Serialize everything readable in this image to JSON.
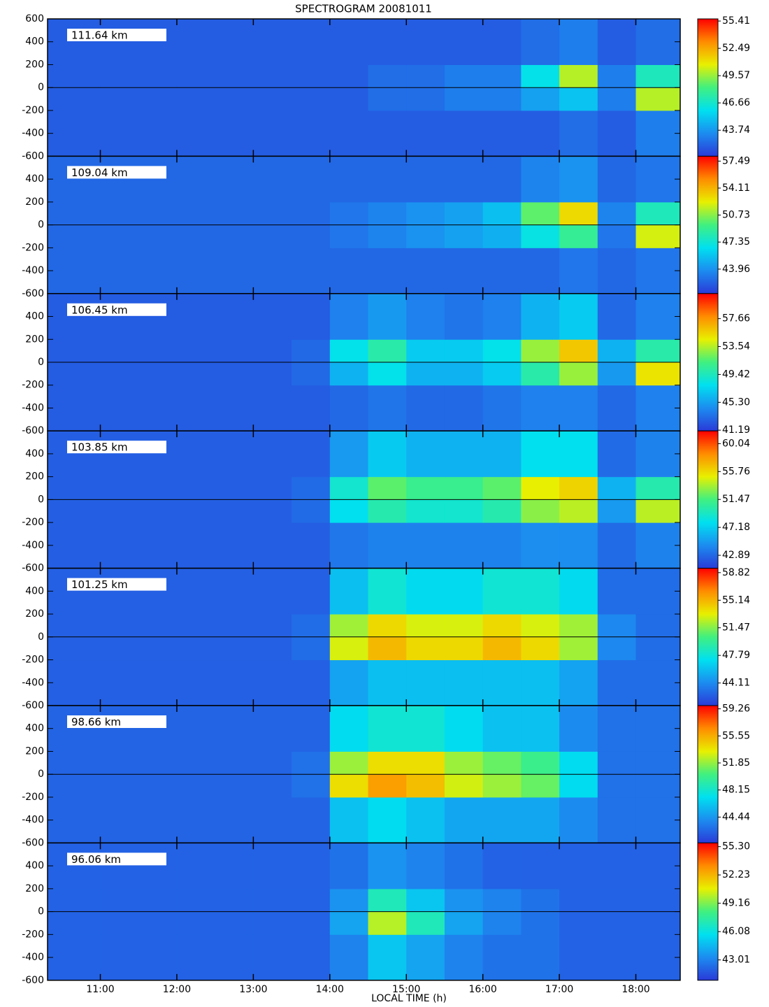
{
  "figure": {
    "title": "SPECTROGRAM 20081011",
    "x_label": "LOCAL TIME (h)",
    "xlim": [
      10.31,
      18.58
    ],
    "xticks": [
      {
        "value": 11,
        "label": "11:00"
      },
      {
        "value": 12,
        "label": "12:00"
      },
      {
        "value": 13,
        "label": "13:00"
      },
      {
        "value": 14,
        "label": "14:00"
      },
      {
        "value": 15,
        "label": "15:00"
      },
      {
        "value": 16,
        "label": "16:00"
      },
      {
        "value": 17,
        "label": "17:00"
      },
      {
        "value": 18,
        "label": "18:00"
      }
    ],
    "xbins": [
      10.31,
      11,
      12,
      13,
      13.5,
      14,
      14.5,
      15,
      15.5,
      16,
      16.5,
      17,
      17.5,
      18,
      18.58
    ],
    "ybins": [
      -600,
      -200,
      0,
      200,
      600
    ],
    "colormap": [
      "#2a3ad8",
      "#1c8cf0",
      "#00e0f0",
      "#40f080",
      "#e8f000",
      "#ff8c00",
      "#ff0000"
    ]
  },
  "chart_data": [
    {
      "type": "heatmap",
      "label": "111.64 km",
      "ylim": [
        -600,
        600
      ],
      "yticks": [
        -600,
        -400,
        -200,
        0,
        200,
        400,
        600
      ],
      "clim": [
        40.96,
        55.64
      ],
      "cticks": [
        43.74,
        46.66,
        49.57,
        52.49,
        55.41
      ],
      "z": [
        [
          42,
          42,
          42,
          42,
          42,
          42,
          42,
          42,
          42,
          42,
          42,
          42.5,
          42,
          43
        ],
        [
          42,
          42,
          42,
          42,
          42,
          42,
          42.5,
          42.5,
          43,
          43,
          44,
          45,
          43,
          50
        ],
        [
          42,
          42,
          42,
          42,
          42,
          42,
          42.5,
          42.5,
          43,
          43,
          46,
          50,
          43,
          47
        ],
        [
          42,
          42,
          42,
          42,
          42,
          42,
          42,
          42,
          42,
          42,
          42.5,
          43,
          42,
          42.5
        ]
      ]
    },
    {
      "type": "heatmap",
      "label": "109.04 km",
      "ylim": [
        -600,
        600
      ],
      "yticks": [
        -600,
        -400,
        -200,
        0,
        200,
        400
      ],
      "clim": [
        40.9,
        58.1
      ],
      "cticks": [
        43.96,
        47.35,
        50.73,
        54.11,
        57.49
      ],
      "z": [
        [
          42.5,
          42.5,
          42.5,
          42.5,
          42.5,
          42.5,
          42.5,
          42.5,
          42.5,
          42.5,
          42.5,
          43,
          42.5,
          43
        ],
        [
          42.5,
          42.5,
          42.5,
          42.5,
          42.5,
          43,
          43.5,
          44,
          44.5,
          45,
          47,
          49,
          43,
          52
        ],
        [
          42.5,
          42.5,
          42.5,
          42.5,
          42.5,
          43,
          43.5,
          44,
          44.5,
          45.5,
          50,
          53,
          43.5,
          48
        ],
        [
          42.5,
          42.5,
          42.5,
          42.5,
          42.5,
          42.5,
          42.5,
          42.5,
          42.5,
          42.5,
          43.5,
          44,
          42.5,
          43
        ]
      ]
    },
    {
      "type": "heatmap",
      "label": "106.45 km",
      "ylim": [
        -600,
        600
      ],
      "yticks": [
        -600,
        -400,
        -200,
        0,
        200,
        400
      ],
      "clim": [
        41.08,
        61.36
      ],
      "cticks": [
        41.19,
        {
          "value": 45.3,
          "label": "45.30"
        },
        49.42,
        53.54,
        57.66
      ],
      "z": [
        [
          42.5,
          42.5,
          42.5,
          42.5,
          42.5,
          43,
          43.5,
          43,
          43,
          43.5,
          44,
          44,
          43,
          44
        ],
        [
          42.5,
          42.5,
          42.5,
          42.5,
          43,
          46,
          48,
          46,
          46,
          47,
          50,
          53,
          45,
          55
        ],
        [
          42.5,
          42.5,
          42.5,
          42.5,
          43,
          48,
          50,
          47,
          47,
          48,
          53,
          56,
          46,
          50
        ],
        [
          42.5,
          42.5,
          42.5,
          42.5,
          42.5,
          44,
          45,
          44,
          43.5,
          44,
          46,
          47,
          43,
          44
        ]
      ]
    },
    {
      "type": "heatmap",
      "label": "103.85 km",
      "ylim": [
        -600,
        600
      ],
      "yticks": [
        -600,
        -400,
        -200,
        0,
        200,
        400
      ],
      "clim": [
        40.9,
        62.0
      ],
      "cticks": [
        42.89,
        47.18,
        51.47,
        55.76,
        60.04
      ],
      "z": [
        [
          42.5,
          42.5,
          42.5,
          42.5,
          42.5,
          43.5,
          44,
          44,
          44,
          44,
          44.5,
          44.5,
          43,
          44
        ],
        [
          42.5,
          42.5,
          42.5,
          42.5,
          43,
          48,
          50,
          49,
          49,
          50,
          53,
          54,
          45,
          54
        ],
        [
          42.5,
          42.5,
          42.5,
          42.5,
          43,
          49,
          52,
          51,
          51,
          52,
          55,
          56,
          46,
          50
        ],
        [
          42.5,
          42.5,
          42.5,
          42.5,
          42.5,
          45,
          47,
          46,
          46,
          46,
          48,
          48,
          43,
          44
        ]
      ]
    },
    {
      "type": "heatmap",
      "label": "101.25 km",
      "ylim": [
        -600,
        600
      ],
      "yticks": [
        -600,
        -400,
        -200,
        0,
        200,
        400
      ],
      "clim": [
        41.1,
        59.4
      ],
      "cticks": [
        44.11,
        47.79,
        51.47,
        55.14,
        58.82
      ],
      "z": [
        [
          42.5,
          42.5,
          42.5,
          42.5,
          42.5,
          45,
          46,
          46,
          46,
          46,
          46,
          45,
          43,
          43
        ],
        [
          42.5,
          42.5,
          42.5,
          42.5,
          43,
          53,
          55,
          54,
          54,
          55,
          54,
          52,
          44,
          43
        ],
        [
          42.5,
          42.5,
          42.5,
          42.5,
          43,
          52,
          54,
          53,
          53,
          54,
          53,
          52,
          44,
          43
        ],
        [
          42.5,
          42.5,
          42.5,
          42.5,
          42.5,
          46,
          48,
          47,
          47,
          48,
          48,
          47,
          43,
          43
        ]
      ]
    },
    {
      "type": "heatmap",
      "label": "98.66 km",
      "ylim": [
        -600,
        600
      ],
      "yticks": [
        -600,
        -400,
        -200,
        0,
        200,
        400
      ],
      "clim": [
        40.9,
        59.7
      ],
      "cticks": [
        44.44,
        48.15,
        51.85,
        55.55,
        59.26
      ],
      "z": [
        [
          42.5,
          42.5,
          42.5,
          42.5,
          42.5,
          46,
          47,
          46,
          45,
          45,
          45,
          44,
          43,
          43
        ],
        [
          42.5,
          42.5,
          42.5,
          42.5,
          43,
          54,
          56,
          55,
          53,
          52,
          51,
          47,
          43,
          43
        ],
        [
          42.5,
          42.5,
          42.5,
          42.5,
          43,
          52,
          54,
          54,
          52,
          51,
          50,
          47,
          43,
          43
        ],
        [
          42.5,
          42.5,
          42.5,
          42.5,
          42.5,
          47,
          48,
          48,
          47,
          46,
          46,
          44,
          43,
          43
        ]
      ]
    },
    {
      "type": "heatmap",
      "label": "96.06 km",
      "ylim": [
        -600,
        600
      ],
      "yticks": [
        -600,
        -400,
        -200,
        0,
        200,
        400
      ],
      "clim": [
        40.8,
        55.7
      ],
      "cticks": [
        43.01,
        46.08,
        49.16,
        52.23,
        {
          "value": 55.3,
          "label": "55.30"
        }
      ],
      "z": [
        [
          42,
          42,
          42,
          42,
          42,
          43,
          45,
          44,
          43,
          42.5,
          42.5,
          42,
          42,
          42
        ],
        [
          42,
          42,
          42,
          42,
          42,
          44,
          50,
          47,
          44,
          43,
          42.5,
          42,
          42,
          42
        ],
        [
          42,
          42,
          42,
          42,
          42,
          43.5,
          47,
          45,
          43.5,
          43,
          42.5,
          42,
          42,
          42
        ],
        [
          42,
          42,
          42,
          42,
          42,
          42.5,
          43.5,
          43,
          42.5,
          42,
          42,
          42,
          42,
          42
        ]
      ]
    }
  ]
}
